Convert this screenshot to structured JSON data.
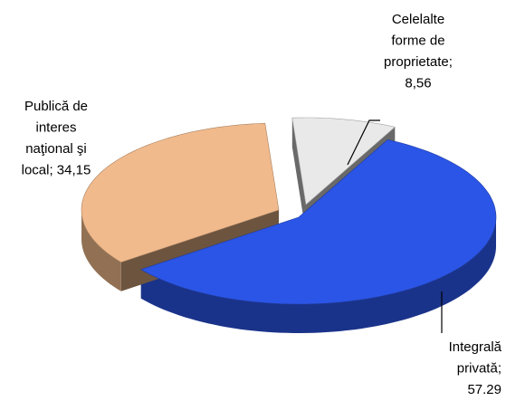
{
  "chart_data": {
    "type": "pie3d",
    "values": [
      8.56,
      57.29,
      34.15
    ],
    "value_labels": [
      "Celelalte\nforme de\nproprietate;\n8,56",
      "Integrală\nprivată;\n57.29",
      "Publică de\ninteres\nnaţional şi\nlocal; 34,15"
    ],
    "colors": [
      "#e9e9e9",
      "#2b55e6",
      "#f1ba8c"
    ]
  }
}
